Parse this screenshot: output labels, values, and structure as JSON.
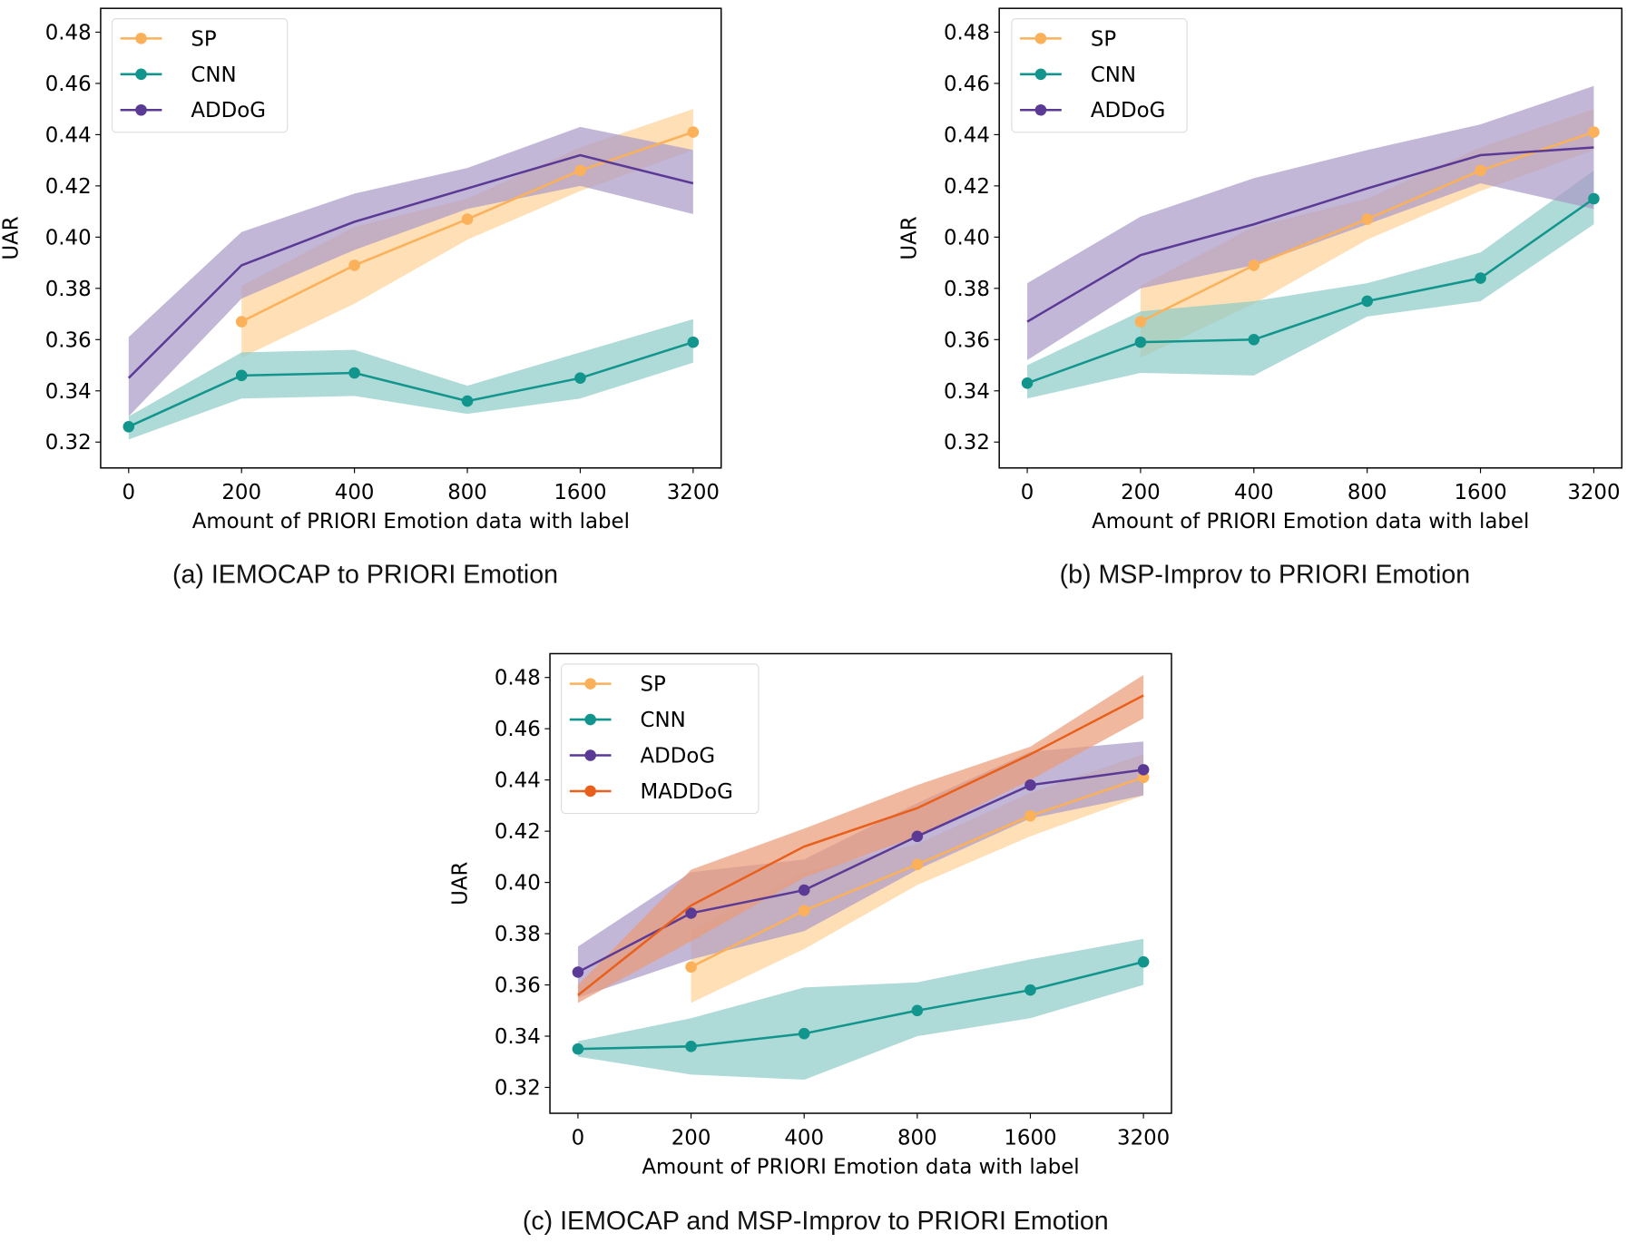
{
  "chart_data": [
    {
      "type": "line",
      "caption": "(a) IEMOCAP to PRIORI Emotion",
      "xlabel": "Amount of PRIORI Emotion data with label",
      "ylabel": "UAR",
      "categories": [
        "0",
        "200",
        "400",
        "800",
        "1600",
        "3200"
      ],
      "yticks": [
        "0.32",
        "0.34",
        "0.36",
        "0.38",
        "0.40",
        "0.42",
        "0.44",
        "0.46",
        "0.48"
      ],
      "ylim": [
        0.3099,
        0.4893
      ],
      "legend_position": "top-left",
      "series": [
        {
          "name": "SP",
          "color": "#fbb15a",
          "band_color": "#fdd49e",
          "markers": true,
          "values": [
            null,
            0.367,
            0.389,
            0.407,
            0.426,
            0.441
          ],
          "lower": [
            null,
            0.353,
            0.374,
            0.399,
            0.418,
            0.434
          ],
          "upper": [
            null,
            0.381,
            0.404,
            0.415,
            0.435,
            0.45
          ]
        },
        {
          "name": "CNN",
          "color": "#12958c",
          "band_color": "#8ccbc7",
          "markers": true,
          "values": [
            0.326,
            0.346,
            0.347,
            0.336,
            0.345,
            0.359
          ],
          "lower": [
            0.321,
            0.337,
            0.338,
            0.331,
            0.337,
            0.351
          ],
          "upper": [
            0.33,
            0.355,
            0.356,
            0.342,
            0.355,
            0.368
          ]
        },
        {
          "name": "ADDoG",
          "color": "#5b3a96",
          "band_color": "#a998c8",
          "markers": false,
          "values": [
            0.345,
            0.389,
            0.406,
            0.419,
            0.432,
            0.421
          ],
          "lower": [
            0.33,
            0.376,
            0.395,
            0.411,
            0.42,
            0.409
          ],
          "upper": [
            0.361,
            0.402,
            0.417,
            0.427,
            0.443,
            0.434
          ]
        }
      ]
    },
    {
      "type": "line",
      "caption": "(b) MSP-Improv to PRIORI Emotion",
      "xlabel": "Amount of PRIORI Emotion data with label",
      "ylabel": "UAR",
      "categories": [
        "0",
        "200",
        "400",
        "800",
        "1600",
        "3200"
      ],
      "yticks": [
        "0.32",
        "0.34",
        "0.36",
        "0.38",
        "0.40",
        "0.42",
        "0.44",
        "0.46",
        "0.48"
      ],
      "ylim": [
        0.3099,
        0.4893
      ],
      "legend_position": "top-left",
      "series": [
        {
          "name": "SP",
          "color": "#fbb15a",
          "band_color": "#fdd49e",
          "markers": true,
          "values": [
            null,
            0.367,
            0.389,
            0.407,
            0.426,
            0.441
          ],
          "lower": [
            null,
            0.353,
            0.374,
            0.399,
            0.418,
            0.434
          ],
          "upper": [
            null,
            0.381,
            0.404,
            0.415,
            0.435,
            0.45
          ]
        },
        {
          "name": "CNN",
          "color": "#12958c",
          "band_color": "#8ccbc7",
          "markers": true,
          "values": [
            0.343,
            0.359,
            0.36,
            0.375,
            0.384,
            0.415
          ],
          "lower": [
            0.337,
            0.347,
            0.346,
            0.369,
            0.375,
            0.405
          ],
          "upper": [
            0.35,
            0.371,
            0.375,
            0.382,
            0.394,
            0.426
          ]
        },
        {
          "name": "ADDoG",
          "color": "#5b3a96",
          "band_color": "#a998c8",
          "markers": false,
          "values": [
            0.367,
            0.393,
            0.405,
            0.419,
            0.432,
            0.435
          ],
          "lower": [
            0.352,
            0.38,
            0.389,
            0.405,
            0.421,
            0.411
          ],
          "upper": [
            0.382,
            0.408,
            0.423,
            0.434,
            0.444,
            0.459
          ]
        }
      ]
    },
    {
      "type": "line",
      "caption": "(c) IEMOCAP and MSP-Improv to PRIORI Emotion",
      "xlabel": "Amount of PRIORI Emotion data with label",
      "ylabel": "UAR",
      "categories": [
        "0",
        "200",
        "400",
        "800",
        "1600",
        "3200"
      ],
      "yticks": [
        "0.32",
        "0.34",
        "0.36",
        "0.38",
        "0.40",
        "0.42",
        "0.44",
        "0.46",
        "0.48"
      ],
      "ylim": [
        0.3099,
        0.4893
      ],
      "legend_position": "top-left",
      "series": [
        {
          "name": "SP",
          "color": "#fbb15a",
          "band_color": "#fdd49e",
          "markers": true,
          "values": [
            null,
            0.367,
            0.389,
            0.407,
            0.426,
            0.441
          ],
          "lower": [
            null,
            0.353,
            0.374,
            0.399,
            0.418,
            0.434
          ],
          "upper": [
            null,
            0.381,
            0.404,
            0.415,
            0.435,
            0.45
          ]
        },
        {
          "name": "CNN",
          "color": "#12958c",
          "band_color": "#8ccbc7",
          "markers": true,
          "values": [
            0.335,
            0.336,
            0.341,
            0.35,
            0.358,
            0.369
          ],
          "lower": [
            0.332,
            0.325,
            0.323,
            0.34,
            0.347,
            0.36
          ],
          "upper": [
            0.338,
            0.347,
            0.359,
            0.361,
            0.37,
            0.378
          ]
        },
        {
          "name": "ADDoG",
          "color": "#5b3a96",
          "band_color": "#a998c8",
          "markers": true,
          "values": [
            0.365,
            0.388,
            0.397,
            0.418,
            0.438,
            0.444
          ],
          "lower": [
            0.355,
            0.37,
            0.381,
            0.405,
            0.425,
            0.434
          ],
          "upper": [
            0.375,
            0.404,
            0.409,
            0.431,
            0.451,
            0.455
          ]
        },
        {
          "name": "MADDoG",
          "color": "#e8601c",
          "band_color": "#eb9a78",
          "markers": false,
          "values": [
            0.356,
            0.391,
            0.414,
            0.429,
            0.45,
            0.473
          ],
          "lower": [
            0.353,
            0.377,
            0.402,
            0.418,
            0.44,
            0.464
          ],
          "upper": [
            0.36,
            0.405,
            0.421,
            0.438,
            0.453,
            0.481
          ]
        }
      ]
    }
  ]
}
